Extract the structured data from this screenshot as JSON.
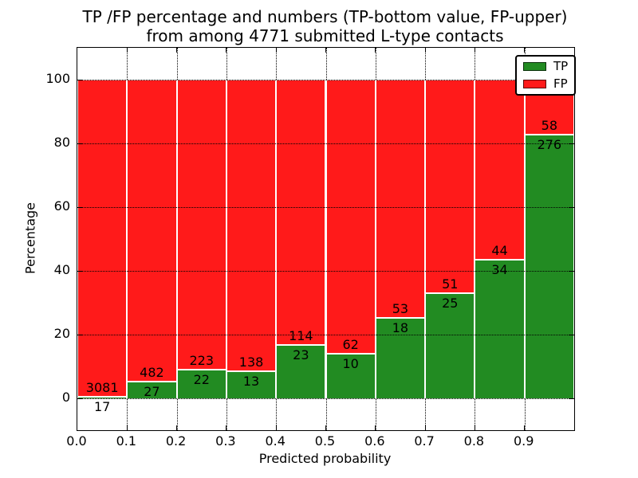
{
  "figure": {
    "title_lines": [
      "TP /FP percentage and numbers (TP-bottom value, FP-upper)",
      "from among 4771 submitted L-type contacts"
    ]
  },
  "chart_data": {
    "type": "bar",
    "stacked": true,
    "normalized_to_percent": true,
    "title": "TP /FP percentage and numbers (TP-bottom value, FP-upper)\nfrom among 4771 submitted L-type contacts",
    "xlabel": "Predicted probability",
    "ylabel": "Percentage",
    "xlim": [
      0.0,
      1.0
    ],
    "ylim": [
      -10,
      110
    ],
    "bar_width": 0.1,
    "bin_starts": [
      0.0,
      0.1,
      0.2,
      0.3,
      0.4,
      0.5,
      0.6,
      0.7,
      0.8,
      0.9
    ],
    "x_tick_values": [
      0.0,
      0.1,
      0.2,
      0.3,
      0.4,
      0.5,
      0.6,
      0.7,
      0.8,
      0.9
    ],
    "x_tick_labels": [
      "0.0",
      "0.1",
      "0.2",
      "0.3",
      "0.4",
      "0.5",
      "0.6",
      "0.7",
      "0.8",
      "0.9"
    ],
    "y_tick_values": [
      0,
      20,
      40,
      60,
      80,
      100
    ],
    "y_tick_labels": [
      "0",
      "20",
      "40",
      "60",
      "80",
      "100"
    ],
    "grid_style": "dotted",
    "legend_position": "upper right",
    "series": [
      {
        "name": "TP",
        "color": "#228B22",
        "counts": [
          17,
          27,
          22,
          13,
          23,
          10,
          18,
          25,
          34,
          276
        ]
      },
      {
        "name": "FP",
        "color": "#ff1a1a",
        "counts": [
          3081,
          482,
          223,
          138,
          114,
          62,
          53,
          51,
          44,
          58
        ]
      }
    ],
    "tp_percent": [
      0.55,
      5.3,
      8.98,
      8.61,
      16.79,
      13.89,
      25.35,
      32.89,
      43.59,
      82.63
    ],
    "total_contacts": 4771
  }
}
